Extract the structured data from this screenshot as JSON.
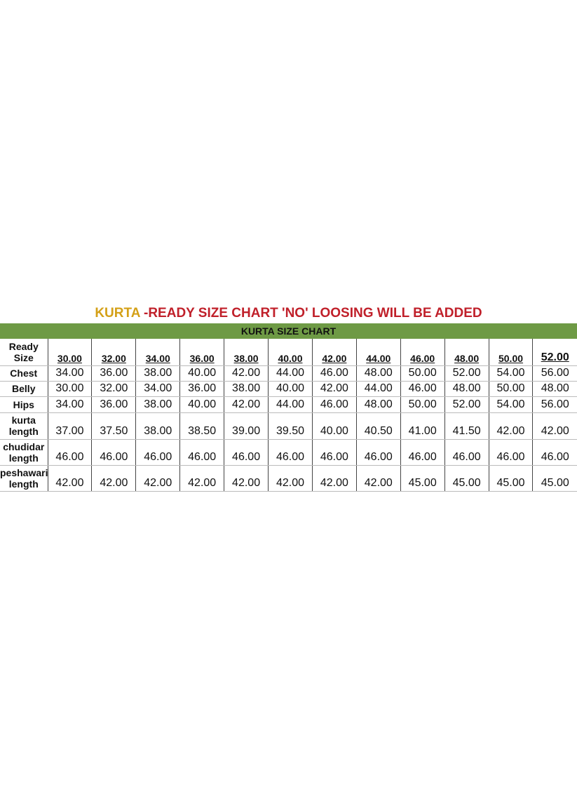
{
  "title": {
    "highlight": "KURTA",
    "rest": " -READY SIZE CHART 'NO' LOOSING WILL BE ADDED"
  },
  "table": {
    "caption": "KURTA SIZE CHART",
    "header": {
      "label": "Ready Size",
      "sizes": [
        "30.00",
        "32.00",
        "34.00",
        "36.00",
        "38.00",
        "40.00",
        "42.00",
        "44.00",
        "46.00",
        "48.00",
        "50.00",
        "52.00"
      ]
    },
    "rows": [
      {
        "label": "Chest",
        "values": [
          "34.00",
          "36.00",
          "38.00",
          "40.00",
          "42.00",
          "44.00",
          "46.00",
          "48.00",
          "50.00",
          "52.00",
          "54.00",
          "56.00"
        ]
      },
      {
        "label": "Belly",
        "values": [
          "30.00",
          "32.00",
          "34.00",
          "36.00",
          "38.00",
          "40.00",
          "42.00",
          "44.00",
          "46.00",
          "48.00",
          "50.00",
          "48.00"
        ]
      },
      {
        "label": "Hips",
        "values": [
          "34.00",
          "36.00",
          "38.00",
          "40.00",
          "42.00",
          "44.00",
          "46.00",
          "48.00",
          "50.00",
          "52.00",
          "54.00",
          "56.00"
        ]
      },
      {
        "label": "kurta length",
        "values": [
          "37.00",
          "37.50",
          "38.00",
          "38.50",
          "39.00",
          "39.50",
          "40.00",
          "40.50",
          "41.00",
          "41.50",
          "42.00",
          "42.00"
        ]
      },
      {
        "label": "chudidar length",
        "values": [
          "46.00",
          "46.00",
          "46.00",
          "46.00",
          "46.00",
          "46.00",
          "46.00",
          "46.00",
          "46.00",
          "46.00",
          "46.00",
          "46.00"
        ]
      },
      {
        "label": "peshawari length",
        "values": [
          "42.00",
          "42.00",
          "42.00",
          "42.00",
          "42.00",
          "42.00",
          "42.00",
          "42.00",
          "45.00",
          "45.00",
          "45.00",
          "45.00"
        ]
      }
    ]
  }
}
